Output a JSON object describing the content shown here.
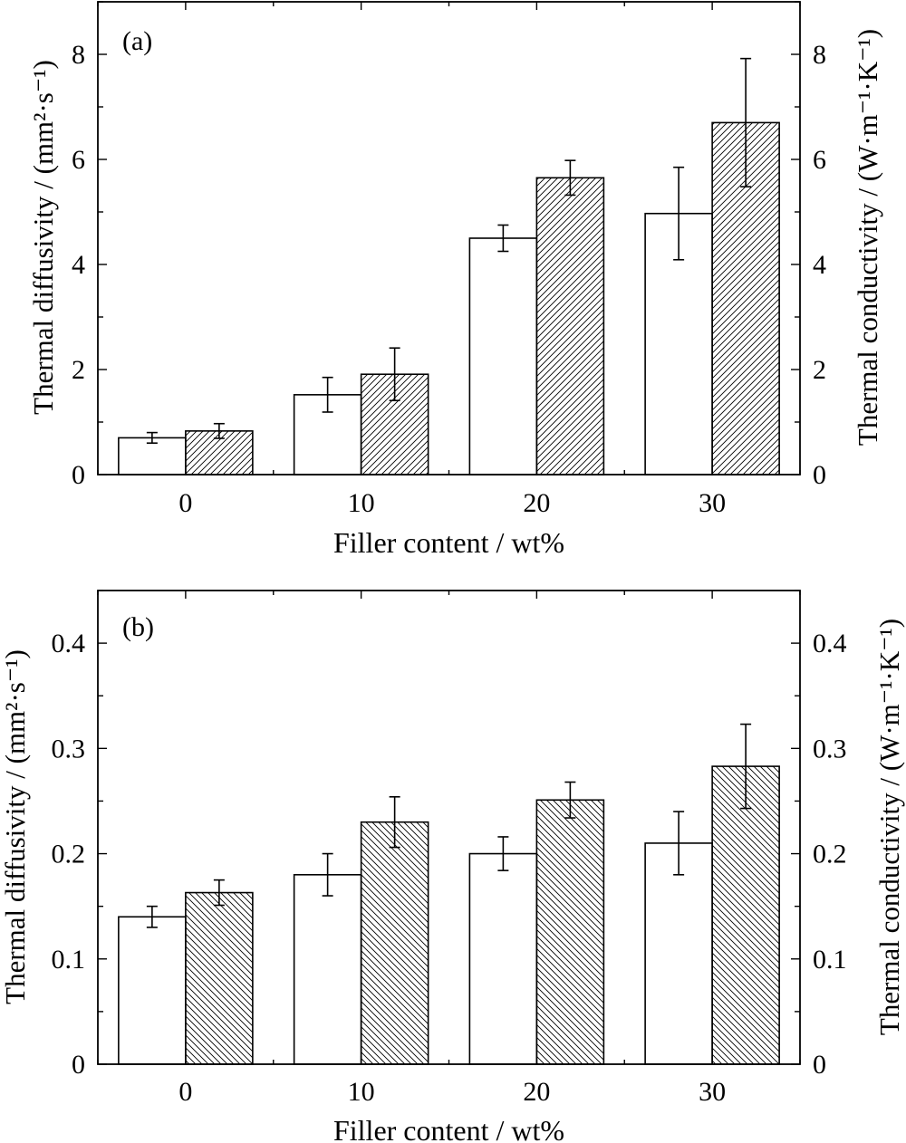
{
  "chart_data": [
    {
      "type": "bar",
      "panel_label": "(a)",
      "categories": [
        "0",
        "10",
        "20",
        "30"
      ],
      "xlabel": "Filler content / wt%",
      "ylabel_left": "Thermal diffusivity / (mm²·s⁻¹)",
      "ylabel_right": "Thermal conductivity / (W·m⁻¹·K⁻¹)",
      "ylim": [
        0,
        9
      ],
      "yticks": [
        "0",
        "2",
        "4",
        "6",
        "8"
      ],
      "ytick_values": [
        0,
        2,
        4,
        6,
        8
      ],
      "hatch": "forward-diagonal",
      "grid": false,
      "series": [
        {
          "axis": "left",
          "fill": "white",
          "values": [
            0.7,
            1.52,
            4.5,
            4.97
          ],
          "errors": [
            0.1,
            0.33,
            0.25,
            0.88
          ]
        },
        {
          "axis": "right",
          "fill": "hatched",
          "values": [
            0.83,
            1.91,
            5.65,
            6.7
          ],
          "errors": [
            0.14,
            0.5,
            0.33,
            1.22
          ]
        }
      ]
    },
    {
      "type": "bar",
      "panel_label": "(b)",
      "categories": [
        "0",
        "10",
        "20",
        "30"
      ],
      "xlabel": "Filler content / wt%",
      "ylabel_left": "Thermal diffusivity / (mm²·s⁻¹)",
      "ylabel_right": "Thermal conductivity / (W·m⁻¹·K⁻¹)",
      "ylim": [
        0,
        0.45
      ],
      "yticks": [
        "0",
        "0.1",
        "0.2",
        "0.3",
        "0.4"
      ],
      "ytick_values": [
        0,
        0.1,
        0.2,
        0.3,
        0.4
      ],
      "hatch": "back-diagonal",
      "grid": false,
      "series": [
        {
          "axis": "left",
          "fill": "white",
          "values": [
            0.14,
            0.18,
            0.2,
            0.21
          ],
          "errors": [
            0.01,
            0.02,
            0.016,
            0.03
          ]
        },
        {
          "axis": "right",
          "fill": "hatched",
          "values": [
            0.163,
            0.23,
            0.251,
            0.283
          ],
          "errors": [
            0.012,
            0.024,
            0.017,
            0.04
          ]
        }
      ]
    }
  ]
}
